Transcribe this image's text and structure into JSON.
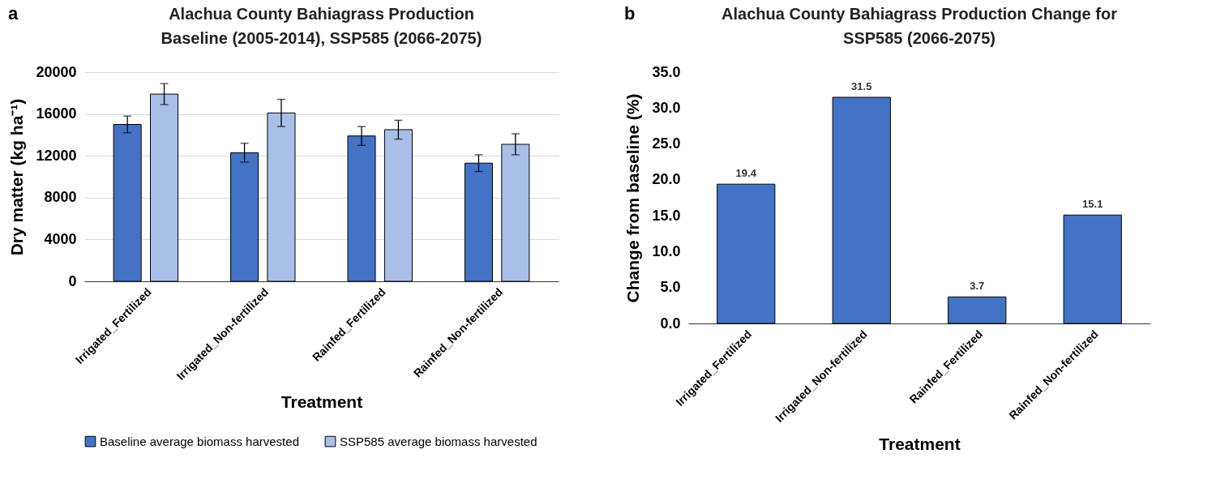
{
  "chart_data": [
    {
      "type": "bar",
      "title": "Alachua County Bahiagrass Production\nBaseline (2005-2014), SSP585 (2066-2075)",
      "xlabel": "Treatment",
      "ylabel": "Dry matter (kg ha⁻¹)",
      "annotations": [
        "a"
      ],
      "categories": [
        "Irrigated_Fertilized",
        "Irrigated_Non-fertilized",
        "Rainfed_Fertilized",
        "Rainfed_Non-fertilized"
      ],
      "series": [
        {
          "name": "Baseline average biomass harvested",
          "color": "#4472c4",
          "values": [
            15000,
            12300,
            13900,
            11300
          ],
          "errors": [
            800,
            900,
            900,
            800
          ]
        },
        {
          "name": "SSP585 average biomass harvested",
          "color": "#a9bfe8",
          "values": [
            17900,
            16100,
            14500,
            13100
          ],
          "errors": [
            1000,
            1300,
            900,
            1000
          ]
        }
      ],
      "ylim": [
        0,
        20000
      ],
      "yticks": [
        0,
        4000,
        8000,
        12000,
        16000,
        20000
      ],
      "grid": "y",
      "legend": "bottom"
    },
    {
      "type": "bar",
      "title": "Alachua County Bahiagrass Production Change for\nSSP585 (2066-2075)",
      "xlabel": "Treatment",
      "ylabel": "Change from baseline (%)",
      "annotations": [
        "b"
      ],
      "categories": [
        "Irrigated_Fertilized",
        "Irrigated_Non-fertilized",
        "Rainfed_Fertilized",
        "Rainfed_Non-fertilized"
      ],
      "series": [
        {
          "color": "#4472c4",
          "values": [
            19.4,
            31.5,
            3.7,
            15.1
          ]
        }
      ],
      "ylim": [
        0,
        35
      ],
      "yticks": [
        {
          "value": 0,
          "label": "0.0"
        },
        {
          "value": 5,
          "label": "5.0"
        },
        {
          "value": 10,
          "label": "10.0"
        },
        {
          "value": 15,
          "label": "15.0"
        },
        {
          "value": 20,
          "label": "20.0"
        },
        {
          "value": 25,
          "label": "25.0"
        },
        {
          "value": 30,
          "label": "30.0"
        },
        {
          "value": 35,
          "label": "35.0"
        }
      ],
      "data_labels": true
    }
  ]
}
